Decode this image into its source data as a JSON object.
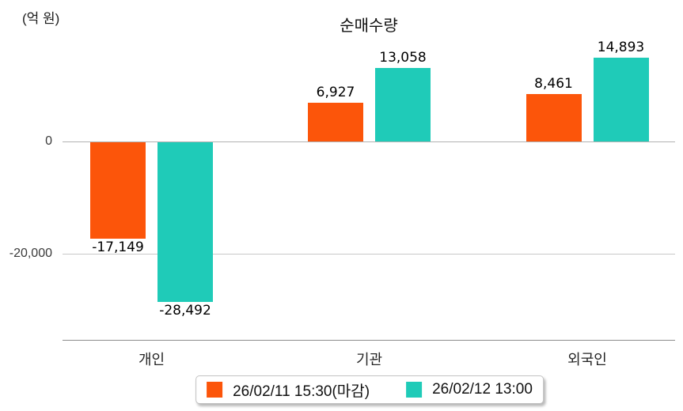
{
  "chart_data": {
    "type": "bar",
    "title": "순매수량",
    "unit_label": "(억 원)",
    "categories": [
      "개인",
      "기관",
      "외국인"
    ],
    "series": [
      {
        "name": "26/02/11 15:30(마감)",
        "color": "#FC550A",
        "values": [
          -17149,
          6927,
          8461
        ],
        "value_labels": [
          "-17,149",
          "6,927",
          "8,461"
        ]
      },
      {
        "name": "26/02/12 13:00",
        "color": "#1FCBB8",
        "values": [
          -28492,
          13058,
          14893
        ],
        "value_labels": [
          "-28,492",
          "13,058",
          "14,893"
        ]
      }
    ],
    "y_ticks": [
      0,
      -20000
    ],
    "y_tick_labels": [
      "0",
      "-20,000"
    ],
    "ylim": [
      -35000,
      19000
    ],
    "grid": true,
    "legend_position": "bottom"
  }
}
